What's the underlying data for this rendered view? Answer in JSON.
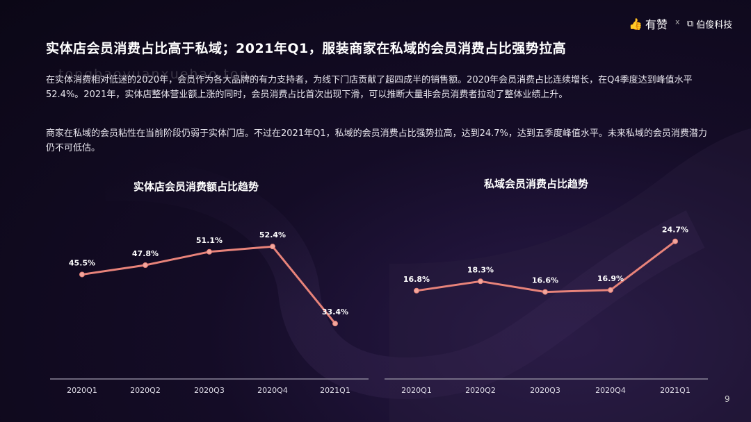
{
  "header": {
    "brand_youzan": "有赞",
    "separator": "x",
    "brand_bojun": "伯俊科技"
  },
  "title": "实体店会员消费占比高于私域；2021年Q1，服装商家在私域的会员消费占比强势拉高",
  "paragraphs": [
    "在实体消费相对低迷的2020年，会员作为各大品牌的有力支持者，为线下门店贡献了超四成半的销售额。2020年会员消费占比连续增长，在Q4季度达到峰值水平52.4%。2021年，实体店整体营业额上涨的同时，会员消费占比首次出现下滑，可以推断大量非会员消费者拉动了整体业绩上升。",
    "商家在私域的会员粘性在当前阶段仍弱于实体门店。不过在2021年Q1，私域的会员消费占比强势拉高，达到24.7%，达到五季度峰值水平。未来私域的会员消费潜力仍不可低估。"
  ],
  "watermark": "tongbaoyuanxuehao.top",
  "page_number": "9",
  "colors": {
    "line": "#e8837a",
    "marker": "#f2a79d",
    "background": "#140c26"
  },
  "chart_data": [
    {
      "type": "line",
      "title": "实体店会员消费额占比趋势",
      "categories": [
        "2020Q1",
        "2020Q2",
        "2020Q3",
        "2020Q4",
        "2021Q1"
      ],
      "values": [
        45.5,
        47.8,
        51.1,
        52.4,
        33.4
      ],
      "labels": [
        "45.5%",
        "47.8%",
        "51.1%",
        "52.4%",
        "33.4%"
      ],
      "ylim": [
        30,
        55
      ],
      "grid": false
    },
    {
      "type": "line",
      "title": "私域会员消费占比趋势",
      "categories": [
        "2020Q1",
        "2020Q2",
        "2020Q3",
        "2020Q4",
        "2021Q1"
      ],
      "values": [
        16.8,
        18.3,
        16.6,
        16.9,
        24.7
      ],
      "labels": [
        "16.8%",
        "18.3%",
        "16.6%",
        "16.9%",
        "24.7%"
      ],
      "ylim": [
        10,
        26
      ],
      "grid": false
    }
  ]
}
